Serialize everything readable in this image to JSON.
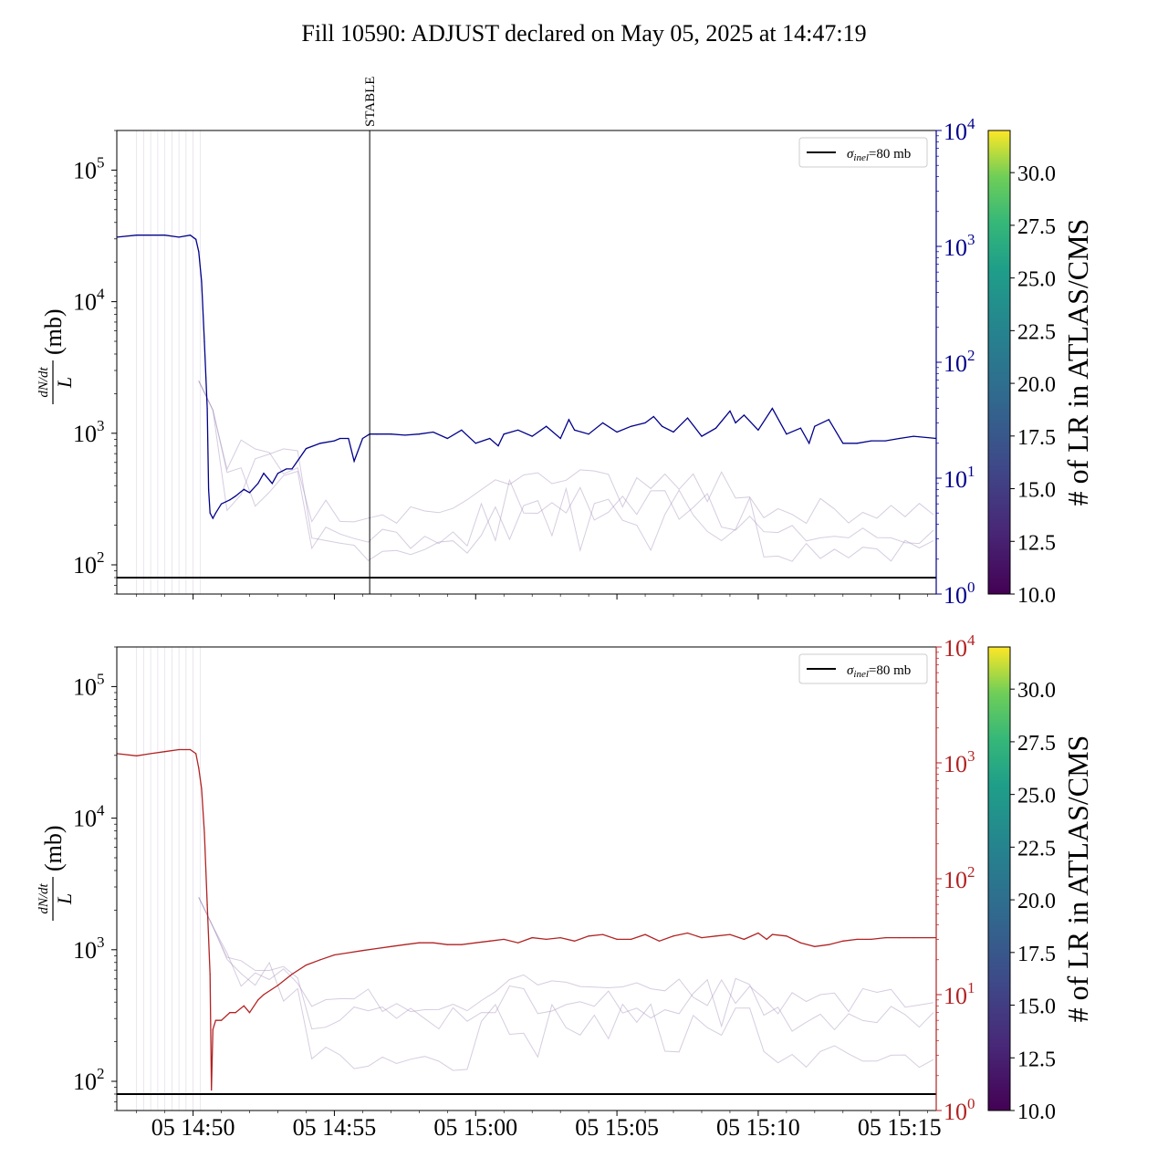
{
  "title": "Fill 10590: ADJUST declared on May 05, 2025 at 14:47:19",
  "colors": {
    "top_series": "#00008b",
    "bottom_series": "#b22222",
    "reference": "#000000",
    "background_traces": "#a58fba"
  },
  "chart_data": [
    {
      "type": "line",
      "panel": "top",
      "ylabel": "(mb)",
      "ylabel_fraction": {
        "numerator": "dN/dt",
        "denominator": "L"
      },
      "yscale": "log",
      "ylim": [
        60,
        200000
      ],
      "yticks": [
        {
          "base": "10",
          "exp": "2"
        },
        {
          "base": "10",
          "exp": "3"
        },
        {
          "base": "10",
          "exp": "4"
        },
        {
          "base": "10",
          "exp": "5"
        }
      ],
      "y2scale": "log",
      "y2lim": [
        1,
        10000
      ],
      "y2ticks": [
        {
          "base": "10",
          "exp": "0"
        },
        {
          "base": "10",
          "exp": "1"
        },
        {
          "base": "10",
          "exp": "2"
        },
        {
          "base": "10",
          "exp": "3"
        },
        {
          "base": "10",
          "exp": "4"
        }
      ],
      "y2color": "#00008b",
      "xlim_minutes_after_14_00": [
        47.3,
        76.3
      ],
      "xtick_minutes": [
        50,
        55,
        60,
        65,
        70,
        75
      ],
      "show_xtick_labels": false,
      "annotation": {
        "label": "STABLE",
        "x_minutes": 56.25
      },
      "reference_line": {
        "label": "σinel=80 mb",
        "value": 80
      },
      "legend": "top-right",
      "grid": false,
      "series": {
        "color": "#00008b",
        "x_minutes": [
          47.3,
          48.0,
          49.0,
          49.5,
          49.9,
          50.1,
          50.2,
          50.3,
          50.4,
          50.5,
          50.55,
          50.6,
          50.7,
          50.8,
          51.0,
          51.3,
          51.5,
          51.8,
          52.0,
          52.3,
          52.5,
          52.8,
          53.0,
          53.3,
          53.5,
          54.0,
          54.5,
          55.0,
          55.2,
          55.5,
          55.7,
          56.0,
          56.25,
          56.5,
          57.0,
          57.5,
          58.0,
          58.5,
          59.0,
          59.5,
          60.0,
          60.5,
          60.8,
          61.0,
          61.5,
          62.0,
          62.5,
          63.0,
          63.3,
          63.5,
          64.0,
          64.5,
          65.0,
          65.5,
          66.0,
          66.3,
          66.6,
          67.0,
          67.5,
          68.0,
          68.5,
          69.0,
          69.2,
          69.5,
          70.0,
          70.5,
          71.0,
          71.5,
          71.8,
          72.0,
          72.5,
          73.0,
          73.5,
          74.0,
          74.5,
          75.0,
          75.5,
          76.3
        ],
        "values": [
          1200,
          1250,
          1250,
          1200,
          1250,
          1150,
          900,
          500,
          150,
          40,
          8,
          5,
          4.5,
          5,
          6,
          6.5,
          7,
          8,
          7.5,
          9,
          11,
          9,
          11,
          12,
          12,
          18,
          20,
          21,
          22,
          22,
          14,
          22,
          24,
          24,
          24,
          23.5,
          24,
          25,
          22,
          26,
          20,
          22,
          19,
          24,
          26,
          23,
          28,
          22,
          32,
          26,
          24,
          30,
          25,
          28,
          30,
          34,
          28,
          25,
          33,
          23,
          27,
          38,
          30,
          35,
          26,
          40,
          24,
          27,
          20,
          28,
          32,
          20,
          20,
          21,
          21,
          22,
          23,
          22
        ]
      },
      "background_traces_note_free": true
    },
    {
      "type": "line",
      "panel": "bottom",
      "ylabel": "(mb)",
      "ylabel_fraction": {
        "numerator": "dN/dt",
        "denominator": "L"
      },
      "yscale": "log",
      "ylim": [
        60,
        200000
      ],
      "yticks": [
        {
          "base": "10",
          "exp": "2"
        },
        {
          "base": "10",
          "exp": "3"
        },
        {
          "base": "10",
          "exp": "4"
        },
        {
          "base": "10",
          "exp": "5"
        }
      ],
      "y2scale": "log",
      "y2lim": [
        1,
        10000
      ],
      "y2ticks": [
        {
          "base": "10",
          "exp": "0"
        },
        {
          "base": "10",
          "exp": "1"
        },
        {
          "base": "10",
          "exp": "2"
        },
        {
          "base": "10",
          "exp": "3"
        },
        {
          "base": "10",
          "exp": "4"
        }
      ],
      "y2color": "#b22222",
      "xlim_minutes_after_14_00": [
        47.3,
        76.3
      ],
      "xtick_minutes": [
        50,
        55,
        60,
        65,
        70,
        75
      ],
      "xtick_labels": [
        "05 14:50",
        "05 14:55",
        "05 15:00",
        "05 15:05",
        "05 15:10",
        "05 15:15"
      ],
      "reference_line": {
        "label": "σinel=80 mb",
        "value": 80
      },
      "legend": "top-right",
      "grid": false,
      "series": {
        "color": "#b22222",
        "x_minutes": [
          47.3,
          48.0,
          48.5,
          49.0,
          49.5,
          49.9,
          50.1,
          50.2,
          50.3,
          50.4,
          50.5,
          50.6,
          50.65,
          50.7,
          50.8,
          51.0,
          51.3,
          51.5,
          51.8,
          52.0,
          52.3,
          52.5,
          53.0,
          53.5,
          54.0,
          54.5,
          55.0,
          55.5,
          56.0,
          56.5,
          57.0,
          57.5,
          58.0,
          58.5,
          59.0,
          59.5,
          60.0,
          60.5,
          61.0,
          61.5,
          62.0,
          62.5,
          63.0,
          63.5,
          64.0,
          64.5,
          65.0,
          65.5,
          66.0,
          66.5,
          67.0,
          67.5,
          68.0,
          68.5,
          69.0,
          69.5,
          70.0,
          70.3,
          70.5,
          71.0,
          71.5,
          72.0,
          72.5,
          73.0,
          73.5,
          74.0,
          74.5,
          75.0,
          75.5,
          76.3
        ],
        "values": [
          1200,
          1150,
          1200,
          1250,
          1300,
          1300,
          1200,
          900,
          600,
          250,
          60,
          15,
          1.5,
          5,
          6,
          6,
          7,
          7,
          8,
          7,
          9,
          10,
          12,
          15,
          18,
          20,
          22,
          23,
          24,
          25,
          26,
          27,
          28,
          28,
          27,
          27,
          28,
          29,
          30,
          28,
          31,
          30,
          31,
          29,
          32,
          33,
          30,
          30,
          33,
          29,
          32,
          34,
          31,
          32,
          33,
          30,
          34,
          30,
          33,
          32,
          28,
          26,
          27,
          29,
          30,
          30,
          31,
          31,
          31,
          31
        ]
      }
    }
  ],
  "colorbars": [
    {
      "label": "# of LR in ATLAS/CMS",
      "range": [
        10,
        32
      ],
      "ticks": [
        "10.0",
        "12.5",
        "15.0",
        "17.5",
        "20.0",
        "22.5",
        "25.0",
        "27.5",
        "30.0"
      ],
      "colormap": "viridis"
    },
    {
      "label": "# of LR in ATLAS/CMS",
      "range": [
        10,
        32
      ],
      "ticks": [
        "10.0",
        "12.5",
        "15.0",
        "17.5",
        "20.0",
        "22.5",
        "25.0",
        "27.5",
        "30.0"
      ],
      "colormap": "viridis"
    }
  ],
  "legend": {
    "symbol": "σ",
    "subscript": "inel",
    "suffix": "=80 mb"
  }
}
